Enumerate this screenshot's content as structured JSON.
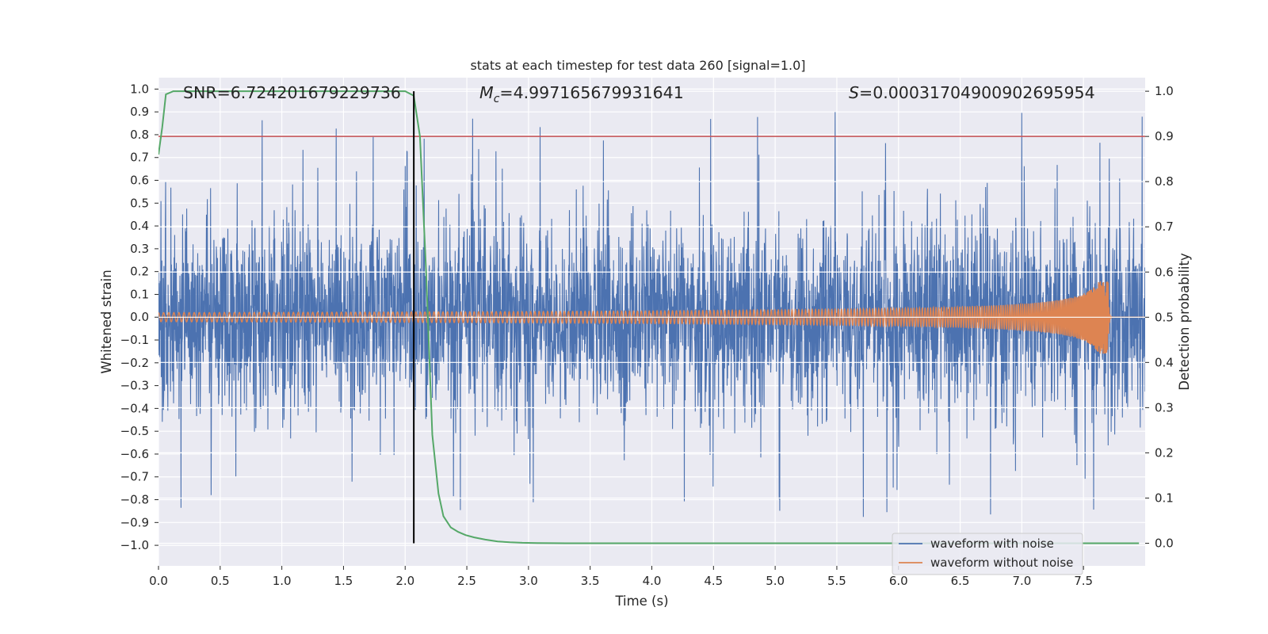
{
  "chart_data": {
    "type": "line",
    "title": "stats at each timestep for test data 260 [signal=1.0]",
    "xlabel": "Time (s)",
    "ylabel_left": "Whitened strain",
    "ylabel_right": "Detection probability",
    "xlim": [
      0.0,
      8.0
    ],
    "ylim_left": [
      -1.09,
      1.05
    ],
    "ylim_right": [
      -0.05,
      1.03
    ],
    "xticks": [
      "0.0",
      "0.5",
      "1.0",
      "1.5",
      "2.0",
      "2.5",
      "3.0",
      "3.5",
      "4.0",
      "4.5",
      "5.0",
      "5.5",
      "6.0",
      "6.5",
      "7.0",
      "7.5"
    ],
    "yticks_left": [
      "1.0",
      "0.9",
      "0.8",
      "0.7",
      "0.6",
      "0.5",
      "0.4",
      "0.3",
      "0.2",
      "0.1",
      "0.0",
      "-0.1",
      "-0.2",
      "-0.3",
      "-0.4",
      "-0.5",
      "-0.6",
      "-0.7",
      "-0.8",
      "-0.9",
      "-1.0"
    ],
    "yticks_right": [
      "1.0",
      "0.9",
      "0.8",
      "0.7",
      "0.6",
      "0.5",
      "0.4",
      "0.3",
      "0.2",
      "0.1",
      "0.0"
    ],
    "annotations": {
      "snr": "SNR=6.724201679229736",
      "mc_symbol": "M",
      "mc_sub": "c",
      "mc_value": "=4.997165679931641",
      "s_symbol": "S",
      "s_value": "=0.00031704900902695954"
    },
    "threshold_right": 0.9,
    "marker_time_s": 2.07,
    "merger_time_s": 7.7,
    "noise_level": {
      "envelope_typical": 0.55,
      "max": 0.95,
      "min": -1.0
    },
    "clean_amplitude": {
      "start": 0.02,
      "peak": 0.16
    },
    "detection_probability": {
      "time_s": [
        0.0,
        0.03,
        0.06,
        0.12,
        0.3,
        0.8,
        1.3,
        1.8,
        2.0,
        2.07,
        2.12,
        2.17,
        2.22,
        2.27,
        2.31,
        2.37,
        2.43,
        2.49,
        2.56,
        2.65,
        2.75,
        2.85,
        2.95,
        3.07,
        3.2,
        3.3,
        3.5,
        4.0,
        5.0,
        6.0,
        7.0,
        7.95
      ],
      "values": [
        0.86,
        0.92,
        0.993,
        1.0,
        1.0,
        1.0,
        1.0,
        1.0,
        1.0,
        0.99,
        0.9,
        0.6,
        0.24,
        0.11,
        0.06,
        0.035,
        0.025,
        0.018,
        0.013,
        0.008,
        0.004,
        0.002,
        0.001,
        0.0005,
        0.0002,
        0.0,
        0.0,
        0.0,
        0.0,
        0.0,
        0.0,
        0.0
      ]
    },
    "series": [
      {
        "name": "waveform with noise",
        "color": "#4c72b0"
      },
      {
        "name": "waveform without noise",
        "color": "#dd8452"
      }
    ],
    "detection_color": "#55a868",
    "threshold_color": "#c44e52",
    "marker_color": "#000000"
  }
}
